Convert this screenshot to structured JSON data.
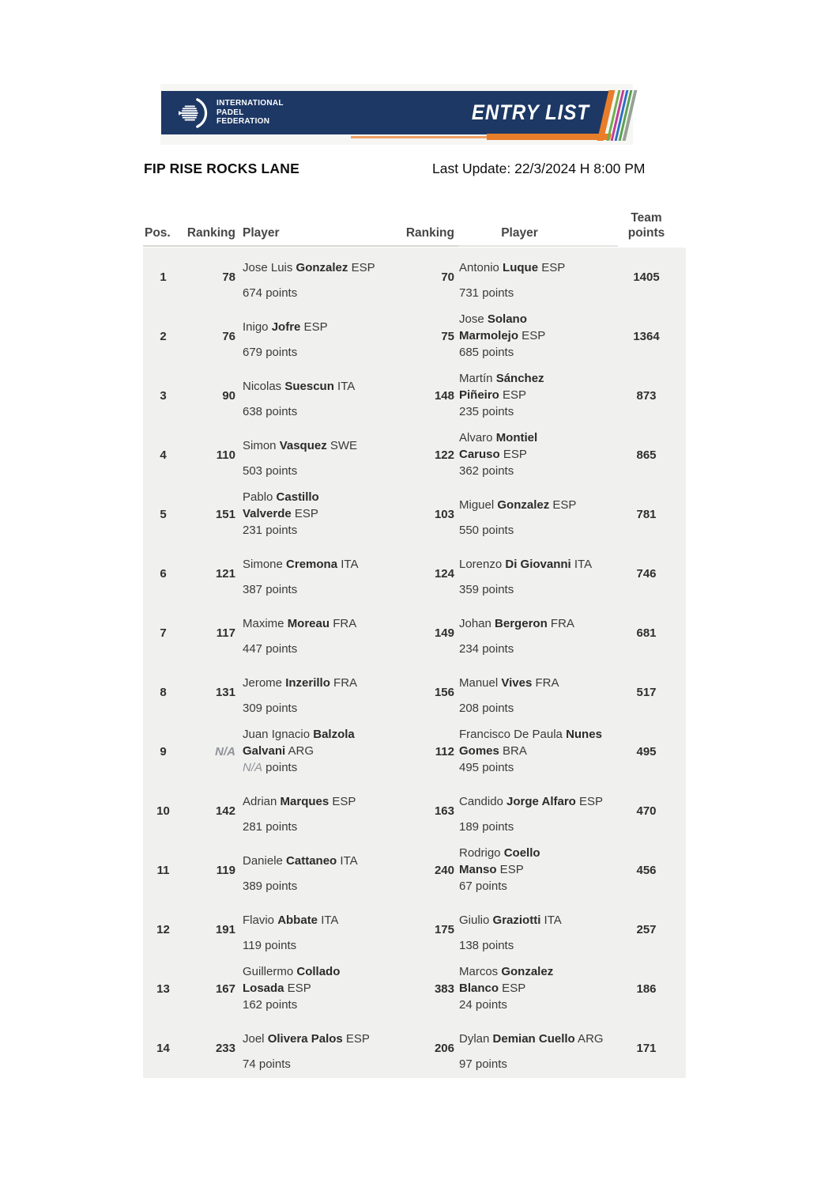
{
  "banner": {
    "logo_lines": [
      "INTERNATIONAL",
      "PADEL",
      "FEDERATION"
    ],
    "entry_list_label": "ENTRY LIST",
    "colors": {
      "navy": "#1d3865",
      "orange": "#e87d2a",
      "orange_light": "#f0a064",
      "stripe_green": "#6fae4e",
      "stripe_magenta": "#c13d97",
      "stripe_blue": "#2d6fc2",
      "stripe_green2": "#5aa153",
      "stripe_gray": "#97a094"
    }
  },
  "header": {
    "title": "FIP RISE ROCKS LANE",
    "last_update": "Last Update: 22/3/2024 H 8:00 PM"
  },
  "table": {
    "columns": [
      "Pos.",
      "Ranking",
      "Player",
      "Ranking",
      "Player",
      "Team points"
    ],
    "points_suffix": "points",
    "rows": [
      {
        "pos": "1",
        "rank1": "78",
        "p1": {
          "lines": [
            [
              [
                "Jose Luis ",
                0
              ],
              [
                "Gonzalez",
                1
              ],
              [
                " ESP",
                0
              ]
            ]
          ],
          "points": "674"
        },
        "rank2": "70",
        "p2": {
          "lines": [
            [
              [
                "Antonio ",
                0
              ],
              [
                "Luque",
                1
              ],
              [
                " ESP",
                0
              ]
            ]
          ],
          "points": "731"
        },
        "team": "1405"
      },
      {
        "pos": "2",
        "rank1": "76",
        "p1": {
          "lines": [
            [
              [
                "Inigo ",
                0
              ],
              [
                "Jofre",
                1
              ],
              [
                " ESP",
                0
              ]
            ]
          ],
          "points": "679"
        },
        "rank2": "75",
        "p2": {
          "lines": [
            [
              [
                "Jose ",
                0
              ],
              [
                "Solano",
                1
              ]
            ],
            [
              [
                "Marmolejo",
                1
              ],
              [
                " ESP",
                0
              ]
            ]
          ],
          "points": "685"
        },
        "team": "1364"
      },
      {
        "pos": "3",
        "rank1": "90",
        "p1": {
          "lines": [
            [
              [
                "Nicolas ",
                0
              ],
              [
                "Suescun",
                1
              ],
              [
                " ITA",
                0
              ]
            ]
          ],
          "points": "638"
        },
        "rank2": "148",
        "p2": {
          "lines": [
            [
              [
                "Martín ",
                0
              ],
              [
                "Sánchez",
                1
              ]
            ],
            [
              [
                "Piñeiro",
                1
              ],
              [
                " ESP",
                0
              ]
            ]
          ],
          "points": "235"
        },
        "team": "873"
      },
      {
        "pos": "4",
        "rank1": "110",
        "p1": {
          "lines": [
            [
              [
                "Simon ",
                0
              ],
              [
                "Vasquez",
                1
              ],
              [
                " SWE",
                0
              ]
            ]
          ],
          "points": "503"
        },
        "rank2": "122",
        "p2": {
          "lines": [
            [
              [
                "Alvaro ",
                0
              ],
              [
                "Montiel",
                1
              ]
            ],
            [
              [
                "Caruso",
                1
              ],
              [
                " ESP",
                0
              ]
            ]
          ],
          "points": "362"
        },
        "team": "865"
      },
      {
        "pos": "5",
        "rank1": "151",
        "p1": {
          "lines": [
            [
              [
                "Pablo ",
                0
              ],
              [
                "Castillo",
                1
              ]
            ],
            [
              [
                "Valverde",
                1
              ],
              [
                " ESP",
                0
              ]
            ]
          ],
          "points": "231"
        },
        "rank2": "103",
        "p2": {
          "lines": [
            [
              [
                "Miguel ",
                0
              ],
              [
                "Gonzalez",
                1
              ],
              [
                " ESP",
                0
              ]
            ]
          ],
          "points": "550"
        },
        "team": "781"
      },
      {
        "pos": "6",
        "rank1": "121",
        "p1": {
          "lines": [
            [
              [
                "Simone ",
                0
              ],
              [
                "Cremona",
                1
              ],
              [
                " ITA",
                0
              ]
            ]
          ],
          "points": "387"
        },
        "rank2": "124",
        "p2": {
          "lines": [
            [
              [
                "Lorenzo ",
                0
              ],
              [
                "Di Giovanni",
                1
              ],
              [
                " ITA",
                0
              ]
            ]
          ],
          "points": "359"
        },
        "team": "746"
      },
      {
        "pos": "7",
        "rank1": "117",
        "p1": {
          "lines": [
            [
              [
                "Maxime ",
                0
              ],
              [
                "Moreau",
                1
              ],
              [
                " FRA",
                0
              ]
            ]
          ],
          "points": "447"
        },
        "rank2": "149",
        "p2": {
          "lines": [
            [
              [
                "Johan ",
                0
              ],
              [
                "Bergeron",
                1
              ],
              [
                " FRA",
                0
              ]
            ]
          ],
          "points": "234"
        },
        "team": "681"
      },
      {
        "pos": "8",
        "rank1": "131",
        "p1": {
          "lines": [
            [
              [
                "Jerome ",
                0
              ],
              [
                "Inzerillo",
                1
              ],
              [
                " FRA",
                0
              ]
            ]
          ],
          "points": "309"
        },
        "rank2": "156",
        "p2": {
          "lines": [
            [
              [
                "Manuel ",
                0
              ],
              [
                "Vives",
                1
              ],
              [
                " FRA",
                0
              ]
            ]
          ],
          "points": "208"
        },
        "team": "517"
      },
      {
        "pos": "9",
        "rank1": "N/A",
        "p1": {
          "lines": [
            [
              [
                "Juan Ignacio ",
                0
              ],
              [
                "Balzola",
                1
              ]
            ],
            [
              [
                "Galvani",
                1
              ],
              [
                " ARG",
                0
              ]
            ]
          ],
          "points": "N/A"
        },
        "rank2": "112",
        "p2": {
          "lines": [
            [
              [
                "Francisco De Paula ",
                0
              ],
              [
                "Nunes",
                1
              ]
            ],
            [
              [
                "Gomes",
                1
              ],
              [
                " BRA",
                0
              ]
            ]
          ],
          "points": "495"
        },
        "team": "495"
      },
      {
        "pos": "10",
        "rank1": "142",
        "p1": {
          "lines": [
            [
              [
                "Adrian ",
                0
              ],
              [
                "Marques",
                1
              ],
              [
                " ESP",
                0
              ]
            ]
          ],
          "points": "281"
        },
        "rank2": "163",
        "p2": {
          "lines": [
            [
              [
                "Candido ",
                0
              ],
              [
                "Jorge Alfaro",
                1
              ],
              [
                " ESP",
                0
              ]
            ]
          ],
          "points": "189"
        },
        "team": "470"
      },
      {
        "pos": "11",
        "rank1": "119",
        "p1": {
          "lines": [
            [
              [
                "Daniele ",
                0
              ],
              [
                "Cattaneo",
                1
              ],
              [
                " ITA",
                0
              ]
            ]
          ],
          "points": "389"
        },
        "rank2": "240",
        "p2": {
          "lines": [
            [
              [
                "Rodrigo ",
                0
              ],
              [
                "Coello",
                1
              ]
            ],
            [
              [
                "Manso",
                1
              ],
              [
                " ESP",
                0
              ]
            ]
          ],
          "points": "67"
        },
        "team": "456"
      },
      {
        "pos": "12",
        "rank1": "191",
        "p1": {
          "lines": [
            [
              [
                "Flavio ",
                0
              ],
              [
                "Abbate",
                1
              ],
              [
                " ITA",
                0
              ]
            ]
          ],
          "points": "119"
        },
        "rank2": "175",
        "p2": {
          "lines": [
            [
              [
                "Giulio ",
                0
              ],
              [
                "Graziotti",
                1
              ],
              [
                " ITA",
                0
              ]
            ]
          ],
          "points": "138"
        },
        "team": "257"
      },
      {
        "pos": "13",
        "rank1": "167",
        "p1": {
          "lines": [
            [
              [
                "Guillermo ",
                0
              ],
              [
                "Collado",
                1
              ]
            ],
            [
              [
                "Losada",
                1
              ],
              [
                " ESP",
                0
              ]
            ]
          ],
          "points": "162"
        },
        "rank2": "383",
        "p2": {
          "lines": [
            [
              [
                "Marcos ",
                0
              ],
              [
                "Gonzalez",
                1
              ]
            ],
            [
              [
                "Blanco",
                1
              ],
              [
                " ESP",
                0
              ]
            ]
          ],
          "points": "24"
        },
        "team": "186"
      },
      {
        "pos": "14",
        "rank1": "233",
        "p1": {
          "lines": [
            [
              [
                "Joel ",
                0
              ],
              [
                "Olivera Palos",
                1
              ],
              [
                " ESP",
                0
              ]
            ]
          ],
          "points": "74"
        },
        "rank2": "206",
        "p2": {
          "lines": [
            [
              [
                "Dylan ",
                0
              ],
              [
                "Demian Cuello",
                1
              ],
              [
                " ARG",
                0
              ]
            ]
          ],
          "points": "97"
        },
        "team": "171"
      }
    ]
  }
}
